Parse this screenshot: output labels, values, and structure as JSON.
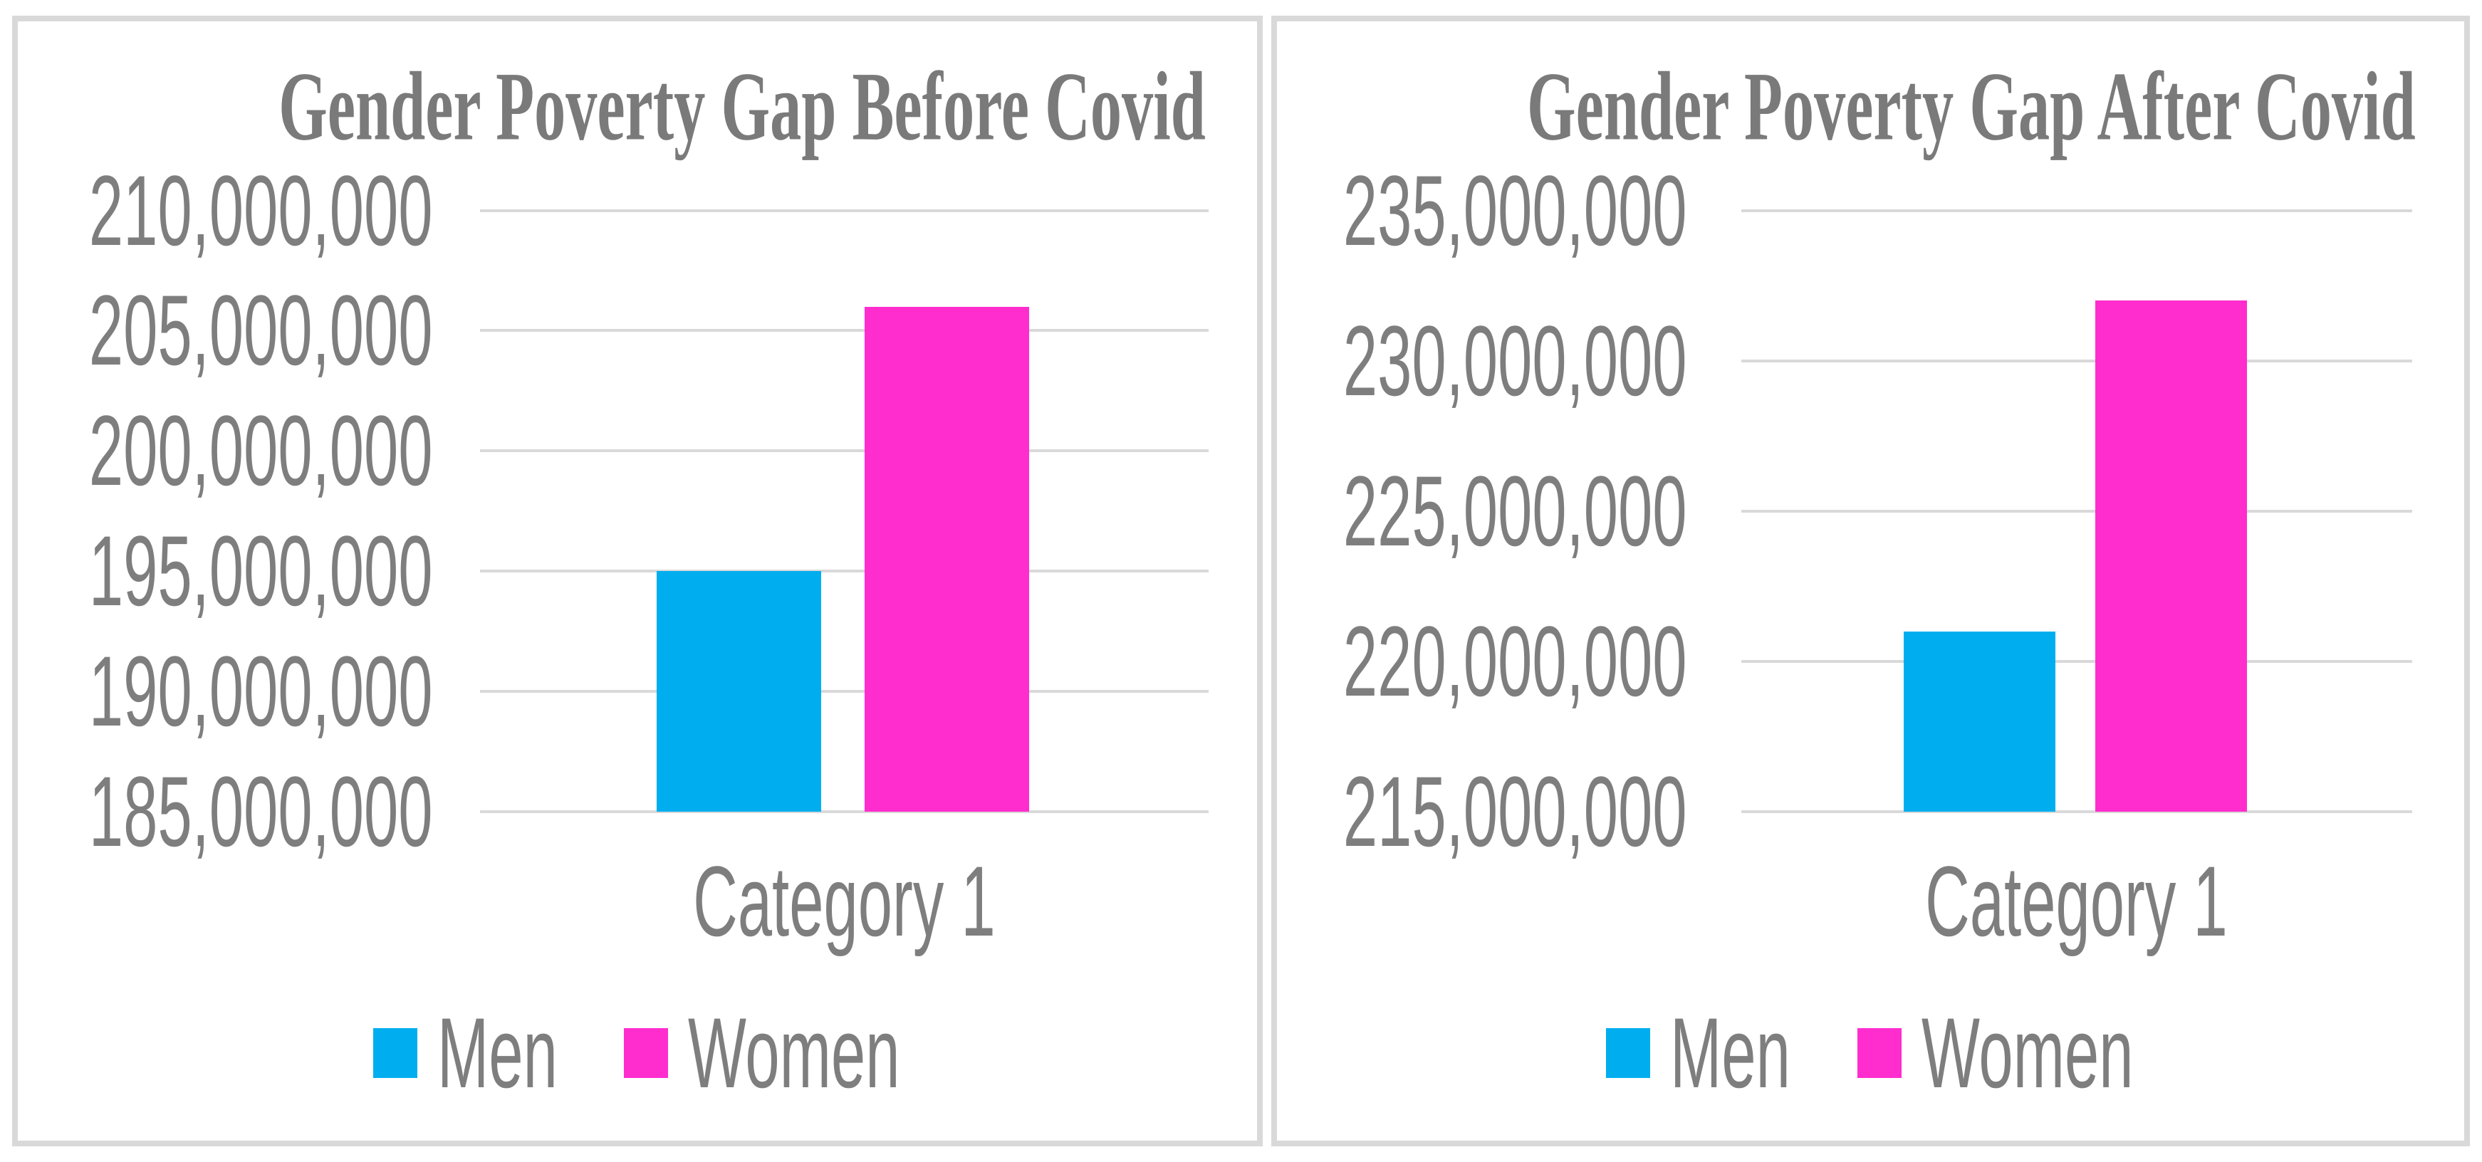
{
  "page": {
    "background": "#ffffff",
    "panel_border_color": "#d9d9d9",
    "gridline_color": "#d9d9d9",
    "title_color": "#7a7a7a",
    "text_color": "#7e7e7e"
  },
  "chart_data": [
    {
      "type": "bar",
      "title": "Gender Poverty Gap Before Covid",
      "categories": [
        "Category 1"
      ],
      "series": [
        {
          "name": "Men",
          "color": "#00aeef",
          "values": [
            195000000
          ]
        },
        {
          "name": "Women",
          "color": "#ff2dce",
          "values": [
            206000000
          ]
        }
      ],
      "ylim": [
        185000000,
        210000000
      ],
      "ytick_step": 5000000,
      "ytick_labels": [
        "210,000,000",
        "205,000,000",
        "200,000,000",
        "195,000,000",
        "190,000,000",
        "185,000,000"
      ],
      "grid": true,
      "legend_position": "bottom"
    },
    {
      "type": "bar",
      "title": "Gender Poverty Gap After Covid",
      "categories": [
        "Category 1"
      ],
      "series": [
        {
          "name": "Men",
          "color": "#00aeef",
          "values": [
            221000000
          ]
        },
        {
          "name": "Women",
          "color": "#ff2dce",
          "values": [
            232000000
          ]
        }
      ],
      "ylim": [
        215000000,
        235000000
      ],
      "ytick_step": 5000000,
      "ytick_labels": [
        "235,000,000",
        "230,000,000",
        "225,000,000",
        "220,000,000",
        "215,000,000"
      ],
      "grid": true,
      "legend_position": "bottom"
    }
  ]
}
